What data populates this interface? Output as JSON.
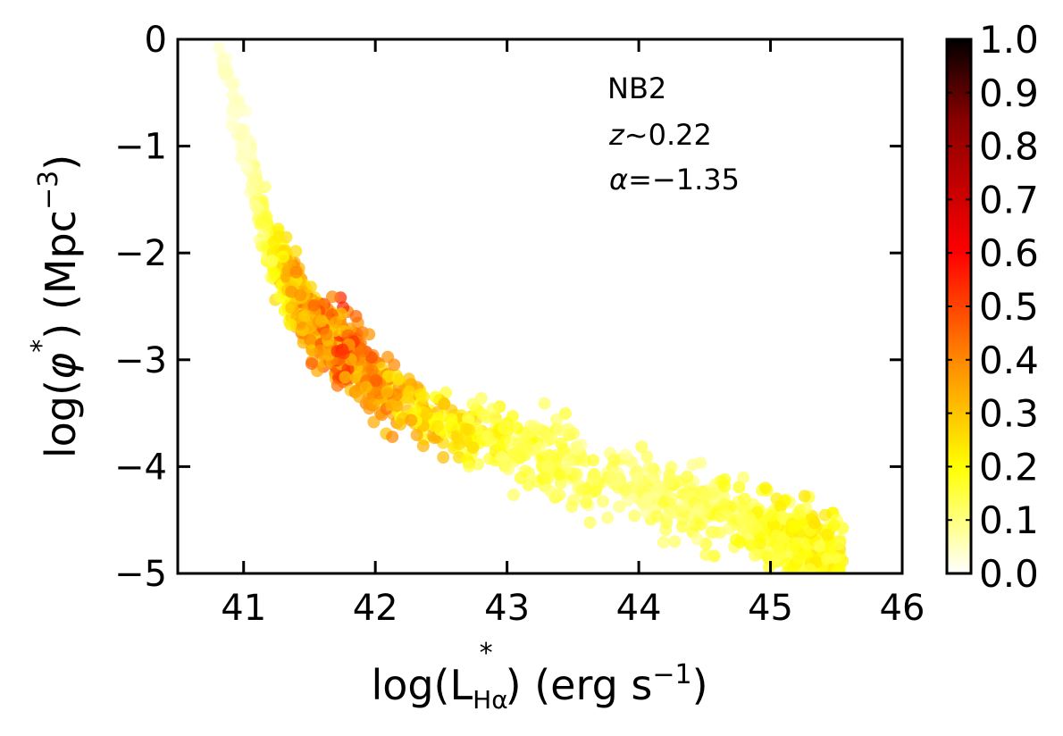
{
  "chart_data": {
    "type": "scatter",
    "x_axis": {
      "label_main": "log(L",
      "label_sub": "Hα",
      "label_sup": "*",
      "label_after": ") (erg s",
      "label_exp": "−1",
      "label_close": ")",
      "range": [
        40.5,
        46
      ],
      "ticks": [
        41,
        42,
        43,
        44,
        45,
        46
      ],
      "tick_labels": [
        "41",
        "42",
        "43",
        "44",
        "45",
        "46"
      ]
    },
    "y_axis": {
      "label_main": "log(",
      "label_phi": "φ",
      "label_sup": "*",
      "label_mid": ") (Mpc",
      "label_exp": "−3",
      "label_close": ")",
      "range": [
        -5,
        0
      ],
      "ticks": [
        0,
        -1,
        -2,
        -3,
        -4,
        -5
      ],
      "tick_labels": [
        "0",
        "−1",
        "−2",
        "−3",
        "−4",
        "−5"
      ]
    },
    "annotations": {
      "line1": "NB2",
      "line2_sym": "z",
      "line2_rest": "~0.22",
      "line3_sym": "α",
      "line3_rest": "=−1.35"
    },
    "colorbar": {
      "range": [
        0,
        1
      ],
      "ticks": [
        0.0,
        0.1,
        0.2,
        0.3,
        0.4,
        0.5,
        0.6,
        0.7,
        0.8,
        0.9,
        1.0
      ],
      "tick_labels": [
        "0.0",
        "0.1",
        "0.2",
        "0.3",
        "0.4",
        "0.5",
        "0.6",
        "0.7",
        "0.8",
        "0.9",
        "1.0"
      ],
      "colormap": "hot_r",
      "stops": [
        "#ffffff",
        "#ffff00",
        "#ff8800",
        "#ff0000",
        "#880000",
        "#000000"
      ]
    },
    "points": {
      "curve_x": [
        40.8,
        41.0,
        41.2,
        41.5,
        41.8,
        42.0,
        42.5,
        43.0,
        43.5,
        44.0,
        44.5,
        45.0,
        45.5
      ],
      "curve_y": [
        0.0,
        -1.0,
        -2.0,
        -2.6,
        -2.95,
        -3.2,
        -3.6,
        -3.8,
        -4.0,
        -4.2,
        -4.4,
        -4.6,
        -4.85
      ],
      "spread_y": [
        0.1,
        0.25,
        0.3,
        0.3,
        0.3,
        0.3,
        0.25,
        0.3,
        0.35,
        0.3,
        0.3,
        0.3,
        0.3
      ],
      "density_x": [
        41.0,
        41.5,
        41.8,
        42.2,
        43.0,
        44.0,
        45.2,
        45.5
      ],
      "density_v": [
        0.05,
        0.42,
        0.48,
        0.32,
        0.18,
        0.12,
        0.2,
        0.22
      ]
    }
  }
}
